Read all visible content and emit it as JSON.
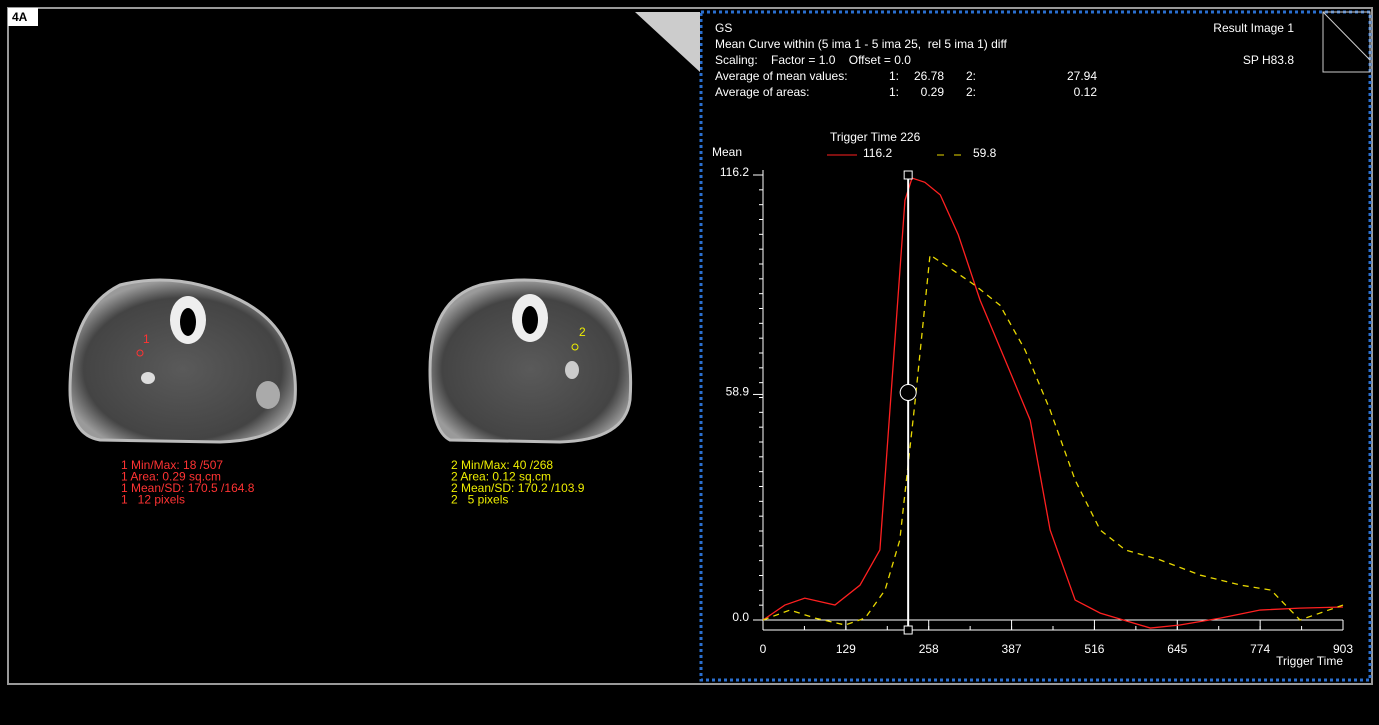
{
  "panel_label": "4A",
  "roi_markers": [
    "1",
    "2"
  ],
  "roi_stats": {
    "roi1": [
      "1 Min/Max: 18 /507",
      "1 Area: 0.29 sq.cm",
      "1 Mean/SD: 170.5 /164.8",
      "1   12 pixels"
    ],
    "roi2": [
      "2 Min/Max: 40 /268",
      "2 Area: 0.12 sq.cm",
      "2 Mean/SD: 170.2 /103.9",
      "2   5 pixels"
    ]
  },
  "header": {
    "lines": [
      [
        "GS"
      ],
      [
        "Mean Curve within (5 ima 1 - 5 ima 25,  rel 5 ima 1) diff"
      ],
      [
        "Scaling:    Factor = 1.0    Offset = 0.0"
      ],
      [
        "Average of mean values:",
        "1:",
        "26.78",
        "2:",
        "27.94"
      ],
      [
        "Average of areas:",
        "1:",
        "0.29",
        "2:",
        "0.12"
      ]
    ],
    "right": [
      "Result Image 1",
      "SP H83.8"
    ]
  },
  "chart_data": {
    "type": "line",
    "y_label": "Mean",
    "x_label": "Trigger Time",
    "legend_title": "Trigger Time 226",
    "cursor_x": 226,
    "xlim": [
      0,
      903
    ],
    "xticks": [
      0,
      129,
      258,
      387,
      516,
      645,
      774,
      903
    ],
    "ylim": [
      0,
      116.2
    ],
    "yticks": [
      {
        "value": 0,
        "label": "0.0"
      },
      58.9,
      116.2
    ],
    "series": [
      {
        "name": "116.2",
        "color": "#ff2020",
        "dash": false,
        "x": [
          0,
          34,
          65,
          112,
          151,
          182,
          221,
          232,
          252,
          276,
          304,
          338,
          377,
          416,
          447,
          486,
          525,
          603,
          649,
          712,
          774,
          836,
          903
        ],
        "values": [
          0,
          3.9,
          5.7,
          3.9,
          9.1,
          18.3,
          109.6,
          115.4,
          114.3,
          111.0,
          100.6,
          83.5,
          67.9,
          52.2,
          23.5,
          5.2,
          1.8,
          -2.1,
          -1.3,
          0.5,
          2.6,
          3.1,
          3.4
        ]
      },
      {
        "name": "59.8",
        "color": "#e8d800",
        "dash": true,
        "x": [
          0,
          42,
          81,
          128,
          159,
          190,
          213,
          237,
          260,
          291,
          330,
          369,
          408,
          447,
          486,
          525,
          564,
          618,
          681,
          744,
          791,
          836,
          903
        ],
        "values": [
          0,
          2.6,
          0.5,
          -1.3,
          0.5,
          7.8,
          20.9,
          57.4,
          95.3,
          91.9,
          87.4,
          82.2,
          70.5,
          54.8,
          36.5,
          23.5,
          18.3,
          15.7,
          11.7,
          9.1,
          7.8,
          0,
          3.9
        ]
      }
    ]
  }
}
